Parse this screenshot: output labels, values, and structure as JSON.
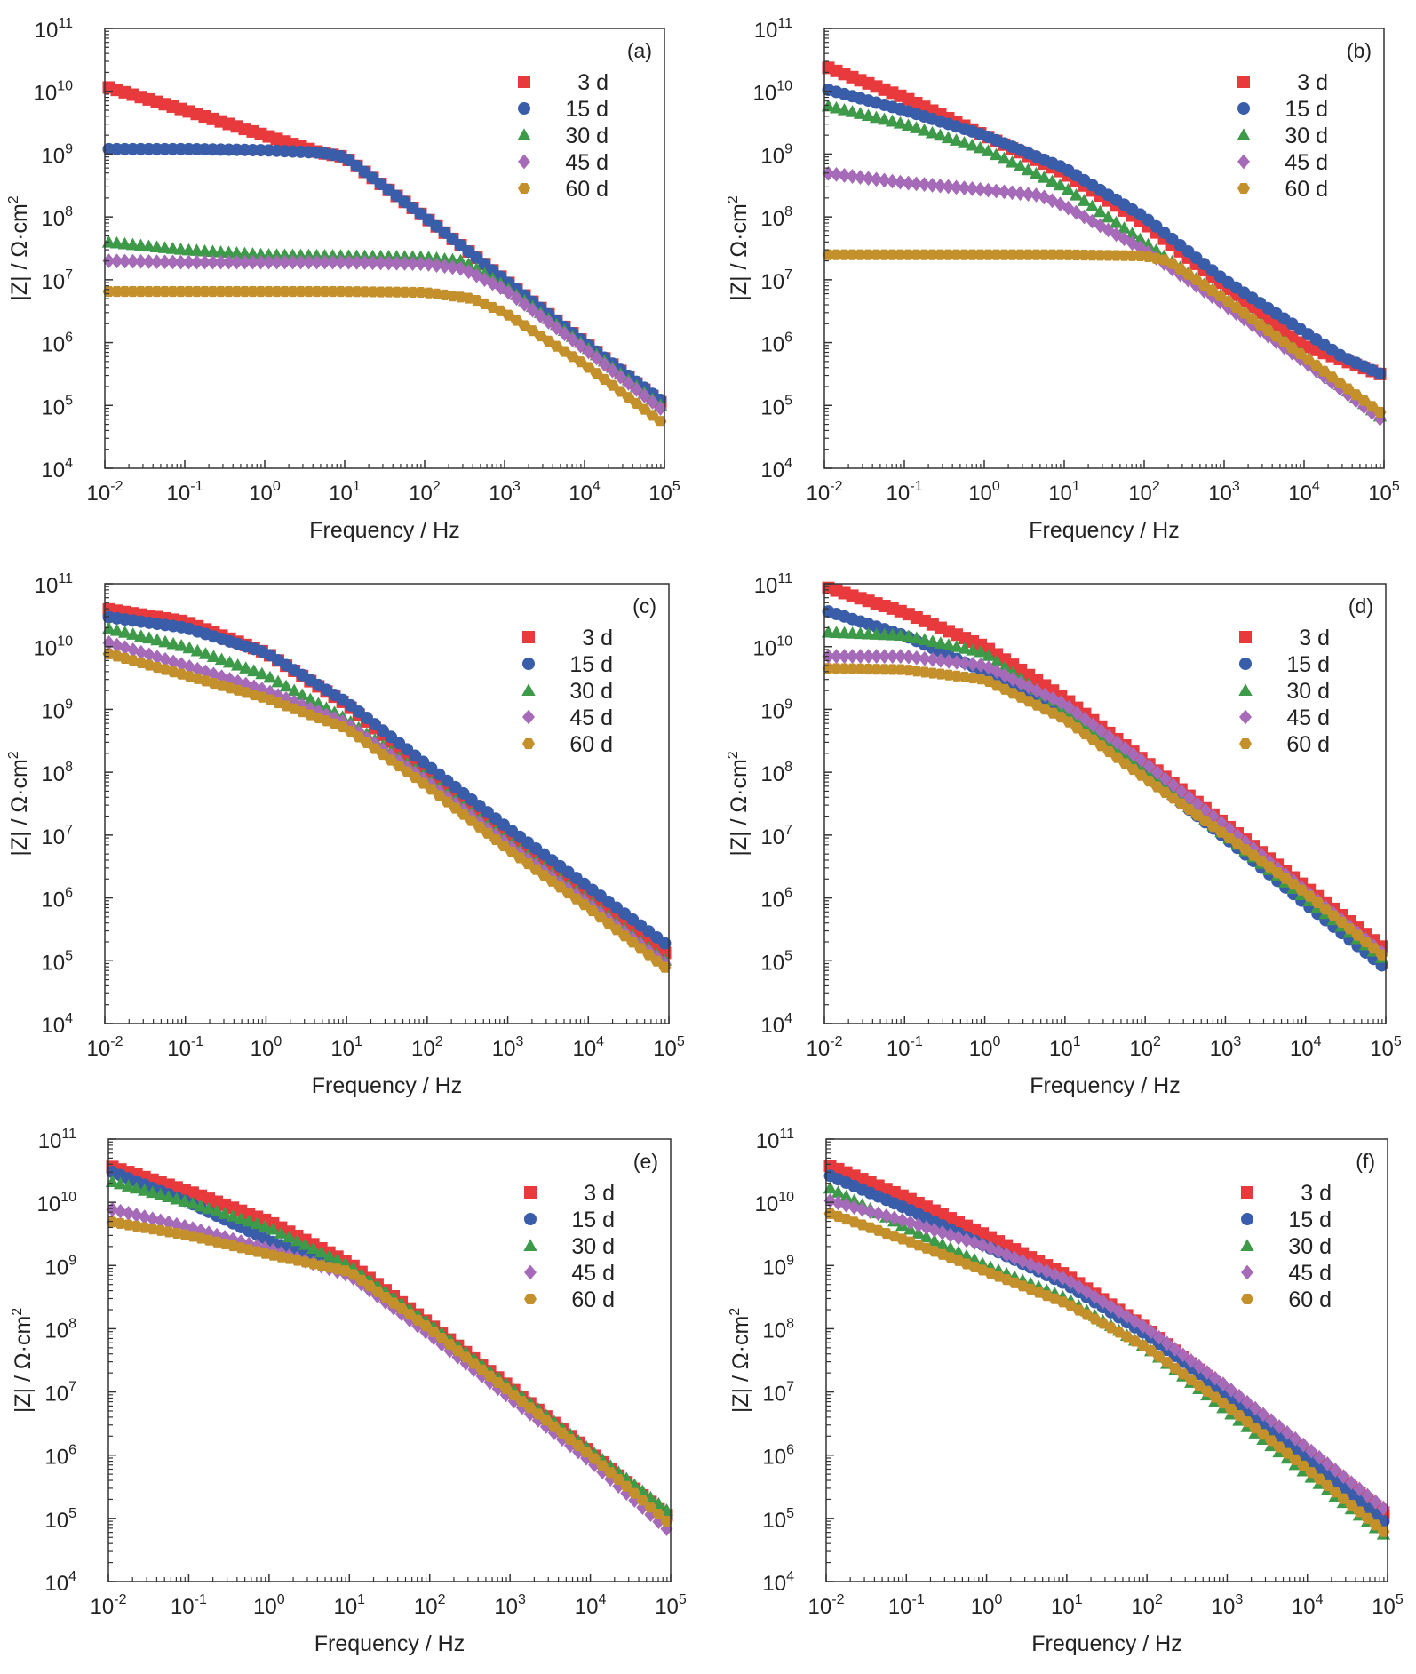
{
  "figure": {
    "x_axis_title": "Frequency / Hz",
    "y_axis_title_main": "|Z| / Ω·cm",
    "y_axis_title_sup": "2",
    "x_tick_labels": [
      {
        "base": "10",
        "exp": "-2"
      },
      {
        "base": "10",
        "exp": "-1"
      },
      {
        "base": "10",
        "exp": "0"
      },
      {
        "base": "10",
        "exp": "1"
      },
      {
        "base": "10",
        "exp": "2"
      },
      {
        "base": "10",
        "exp": "3"
      },
      {
        "base": "10",
        "exp": "4"
      },
      {
        "base": "10",
        "exp": "5"
      }
    ],
    "y_tick_labels": [
      {
        "base": "10",
        "exp": "4"
      },
      {
        "base": "10",
        "exp": "5"
      },
      {
        "base": "10",
        "exp": "6"
      },
      {
        "base": "10",
        "exp": "7"
      },
      {
        "base": "10",
        "exp": "8"
      },
      {
        "base": "10",
        "exp": "9"
      },
      {
        "base": "10",
        "exp": "10"
      },
      {
        "base": "10",
        "exp": "11"
      }
    ]
  },
  "series_styles": [
    {
      "name": "3 d",
      "color": "#e8393c",
      "marker": "square"
    },
    {
      "name": "15 d",
      "color": "#3a5daa",
      "marker": "circle"
    },
    {
      "name": "30 d",
      "color": "#3c9a48",
      "marker": "triangle"
    },
    {
      "name": "45 d",
      "color": "#a66bb8",
      "marker": "diamond"
    },
    {
      "name": "60 d",
      "color": "#c4902b",
      "marker": "hexagon"
    }
  ],
  "chart_data": [
    {
      "type": "scatter",
      "panel": "(a)",
      "xscale": "log",
      "yscale": "log",
      "xlim": [
        0.01,
        100000
      ],
      "ylim": [
        10000,
        100000000000
      ],
      "xlabel": "Frequency / Hz",
      "ylabel": "|Z| / Ω·cm²",
      "legend": "top-right",
      "series": [
        {
          "name": "3 d",
          "x": [
            0.01,
            0.1,
            1,
            5,
            10,
            100,
            1000,
            10000,
            100000
          ],
          "y": [
            12000000000,
            5000000000,
            2000000000,
            1050000000,
            900000000,
            100000000,
            10000000,
            1000000,
            100000
          ]
        },
        {
          "name": "15 d",
          "x": [
            0.01,
            0.1,
            1,
            5,
            10,
            100,
            1000,
            10000,
            100000
          ],
          "y": [
            1200000000,
            1200000000,
            1150000000,
            1050000000,
            900000000,
            100000000,
            10000000,
            1000000,
            110000
          ]
        },
        {
          "name": "30 d",
          "x": [
            0.01,
            0.1,
            1,
            10,
            100,
            300,
            1000,
            10000,
            100000
          ],
          "y": [
            40000000,
            30000000,
            25000000,
            24000000,
            23000000,
            20000000,
            8000000,
            900000,
            90000
          ]
        },
        {
          "name": "45 d",
          "x": [
            0.01,
            0.1,
            1,
            10,
            100,
            300,
            1000,
            10000,
            100000
          ],
          "y": [
            20000000,
            19000000,
            19000000,
            19000000,
            18000000,
            15000000,
            7000000,
            800000,
            80000
          ]
        },
        {
          "name": "60 d",
          "x": [
            0.01,
            0.1,
            1,
            10,
            100,
            400,
            1000,
            10000,
            100000
          ],
          "y": [
            6500000,
            6500000,
            6500000,
            6500000,
            6300000,
            5000000,
            3000000,
            450000,
            50000
          ]
        }
      ]
    },
    {
      "type": "scatter",
      "panel": "(b)",
      "xscale": "log",
      "yscale": "log",
      "xlim": [
        0.01,
        100000
      ],
      "ylim": [
        10000,
        100000000000
      ],
      "xlabel": "Frequency / Hz",
      "ylabel": "|Z| / Ω·cm²",
      "legend": "top-right",
      "series": [
        {
          "name": "3 d",
          "x": [
            0.01,
            0.1,
            1,
            10,
            100,
            1000,
            10000,
            100000
          ],
          "y": [
            25000000000,
            8000000000,
            2000000000,
            500000000,
            80000000,
            8000000,
            900000,
            300000
          ]
        },
        {
          "name": "15 d",
          "x": [
            0.01,
            0.1,
            1,
            10,
            100,
            1000,
            10000,
            30000,
            100000
          ],
          "y": [
            11000000000,
            5000000000,
            2000000000,
            600000000,
            100000000,
            10000000,
            1500000,
            600000,
            300000
          ]
        },
        {
          "name": "30 d",
          "x": [
            0.01,
            0.1,
            1,
            10,
            100,
            1000,
            10000,
            100000
          ],
          "y": [
            6000000000,
            3000000000,
            1200000000,
            300000000,
            40000000,
            5000000,
            600000,
            60000
          ]
        },
        {
          "name": "45 d",
          "x": [
            0.01,
            0.1,
            1,
            5,
            10,
            100,
            1000,
            10000,
            100000
          ],
          "y": [
            500000000,
            350000000,
            270000000,
            220000000,
            150000000,
            30000000,
            4000000,
            500000,
            55000
          ]
        },
        {
          "name": "60 d",
          "x": [
            0.01,
            0.1,
            1,
            10,
            100,
            200,
            1000,
            10000,
            100000
          ],
          "y": [
            25000000,
            25000000,
            25000000,
            25000000,
            24000000,
            20000000,
            5000000,
            600000,
            70000
          ]
        }
      ]
    },
    {
      "type": "scatter",
      "panel": "(c)",
      "xscale": "log",
      "yscale": "log",
      "xlim": [
        0.01,
        100000
      ],
      "ylim": [
        10000,
        100000000000
      ],
      "xlabel": "Frequency / Hz",
      "ylabel": "|Z| / Ω·cm²",
      "legend": "top-right",
      "series": [
        {
          "name": "3 d",
          "x": [
            0.01,
            0.1,
            1,
            10,
            100,
            1000,
            10000,
            100000
          ],
          "y": [
            40000000000,
            25000000000,
            8000000000,
            1200000000,
            100000000,
            10000000,
            1100000,
            120000
          ]
        },
        {
          "name": "15 d",
          "x": [
            0.01,
            0.1,
            1,
            10,
            100,
            1000,
            10000,
            100000
          ],
          "y": [
            30000000000,
            20000000000,
            8000000000,
            1300000000,
            130000000,
            13000000,
            1500000,
            170000
          ]
        },
        {
          "name": "30 d",
          "x": [
            0.01,
            0.1,
            1,
            10,
            100,
            1000,
            10000,
            100000
          ],
          "y": [
            20000000000,
            10000000000,
            3500000000,
            700000000,
            80000000,
            8000000,
            900000,
            90000
          ]
        },
        {
          "name": "45 d",
          "x": [
            0.01,
            0.1,
            1,
            10,
            100,
            1000,
            10000,
            100000
          ],
          "y": [
            12000000000,
            5000000000,
            2000000000,
            600000000,
            70000000,
            7000000,
            800000,
            80000
          ]
        },
        {
          "name": "60 d",
          "x": [
            0.01,
            0.1,
            1,
            10,
            100,
            1000,
            10000,
            100000
          ],
          "y": [
            8000000000,
            3500000000,
            1500000000,
            500000000,
            60000000,
            6000000,
            700000,
            70000
          ]
        }
      ]
    },
    {
      "type": "scatter",
      "panel": "(d)",
      "xscale": "log",
      "yscale": "log",
      "xlim": [
        0.01,
        100000
      ],
      "ylim": [
        10000,
        100000000000
      ],
      "xlabel": "Frequency / Hz",
      "ylabel": "|Z| / Ω·cm²",
      "legend": "top-right",
      "series": [
        {
          "name": "3 d",
          "x": [
            0.01,
            0.1,
            1,
            10,
            100,
            1000,
            10000,
            100000
          ],
          "y": [
            90000000000,
            35000000000,
            10000000000,
            1500000000,
            150000000,
            15000000,
            1500000,
            150000
          ]
        },
        {
          "name": "15 d",
          "x": [
            0.01,
            0.1,
            1,
            10,
            100,
            1000,
            10000,
            100000
          ],
          "y": [
            38000000000,
            15000000000,
            4000000000,
            800000000,
            90000000,
            9000000,
            800000,
            75000
          ]
        },
        {
          "name": "30 d",
          "x": [
            0.01,
            0.1,
            1,
            10,
            100,
            1000,
            10000,
            100000
          ],
          "y": [
            17000000000,
            15000000000,
            8000000000,
            1000000000,
            100000000,
            10000000,
            1000000,
            100000
          ]
        },
        {
          "name": "45 d",
          "x": [
            0.01,
            0.1,
            1,
            10,
            100,
            1000,
            10000,
            100000
          ],
          "y": [
            7000000000,
            7000000000,
            5000000000,
            1200000000,
            140000000,
            14000000,
            1300000,
            120000
          ]
        },
        {
          "name": "60 d",
          "x": [
            0.01,
            0.1,
            1,
            10,
            100,
            1000,
            10000,
            100000
          ],
          "y": [
            4500000000,
            4300000000,
            3000000000,
            700000000,
            80000000,
            10000000,
            1200000,
            110000
          ]
        }
      ]
    },
    {
      "type": "scatter",
      "panel": "(e)",
      "xscale": "log",
      "yscale": "log",
      "xlim": [
        0.01,
        100000
      ],
      "ylim": [
        10000,
        100000000000
      ],
      "xlabel": "Frequency / Hz",
      "ylabel": "|Z| / Ω·cm²",
      "legend": "top-right",
      "series": [
        {
          "name": "3 d",
          "x": [
            0.01,
            0.1,
            1,
            10,
            100,
            1000,
            10000,
            100000
          ],
          "y": [
            38000000000,
            15000000000,
            5000000000,
            1100000000,
            120000000,
            12000000,
            1100000,
            100000
          ]
        },
        {
          "name": "15 d",
          "x": [
            0.01,
            0.1,
            1,
            10,
            100,
            1000,
            10000,
            100000
          ],
          "y": [
            32000000000,
            10000000000,
            2500000000,
            800000000,
            100000000,
            10000000,
            1000000,
            90000
          ]
        },
        {
          "name": "30 d",
          "x": [
            0.01,
            0.1,
            1,
            10,
            100,
            1000,
            10000,
            100000
          ],
          "y": [
            22000000000,
            10000000000,
            4000000000,
            1000000000,
            120000000,
            12000000,
            1200000,
            120000
          ]
        },
        {
          "name": "45 d",
          "x": [
            0.01,
            0.1,
            1,
            10,
            100,
            1000,
            10000,
            100000
          ],
          "y": [
            8000000000,
            4000000000,
            1800000000,
            700000000,
            80000000,
            8000000,
            800000,
            60000
          ]
        },
        {
          "name": "60 d",
          "x": [
            0.01,
            0.1,
            1,
            10,
            100,
            1000,
            10000,
            100000
          ],
          "y": [
            5000000000,
            3000000000,
            1500000000,
            800000000,
            100000000,
            10000000,
            1000000,
            80000
          ]
        }
      ]
    },
    {
      "type": "scatter",
      "panel": "(f)",
      "xscale": "log",
      "yscale": "log",
      "xlim": [
        0.01,
        100000
      ],
      "ylim": [
        10000,
        100000000000
      ],
      "xlabel": "Frequency / Hz",
      "ylabel": "|Z| / Ω·cm²",
      "legend": "top-right",
      "series": [
        {
          "name": "3 d",
          "x": [
            0.01,
            0.1,
            1,
            10,
            100,
            1000,
            10000,
            100000
          ],
          "y": [
            40000000000,
            12000000000,
            3000000000,
            700000000,
            100000000,
            10000000,
            1100000,
            110000
          ]
        },
        {
          "name": "15 d",
          "x": [
            0.01,
            0.1,
            1,
            10,
            100,
            1000,
            10000,
            100000
          ],
          "y": [
            28000000000,
            8000000000,
            2000000000,
            500000000,
            80000000,
            9000000,
            900000,
            80000
          ]
        },
        {
          "name": "30 d",
          "x": [
            0.01,
            0.1,
            1,
            10,
            100,
            1000,
            10000,
            100000
          ],
          "y": [
            18000000000,
            4000000000,
            1000000000,
            300000000,
            50000000,
            5000000,
            500000,
            50000
          ]
        },
        {
          "name": "45 d",
          "x": [
            0.01,
            0.1,
            1,
            10,
            100,
            1000,
            10000,
            100000
          ],
          "y": [
            11000000000,
            5000000000,
            2000000000,
            600000000,
            100000000,
            12000000,
            1300000,
            130000
          ]
        },
        {
          "name": "60 d",
          "x": [
            0.01,
            0.1,
            1,
            10,
            100,
            1000,
            10000,
            100000
          ],
          "y": [
            7000000000,
            2500000000,
            800000000,
            250000000,
            50000000,
            6000000,
            600000,
            55000
          ]
        }
      ]
    }
  ]
}
